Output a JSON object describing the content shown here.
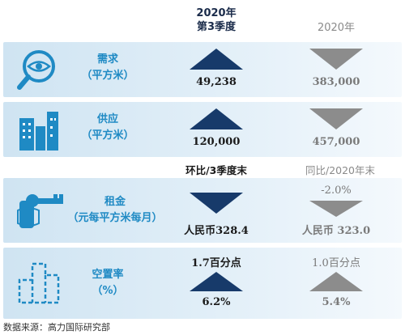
{
  "header": {
    "col1_line1": "2020年",
    "col1_line2": "第3季度",
    "col2": "2020年"
  },
  "rows": [
    {
      "icon": "magnifier-eye-icon",
      "label_line1": "需求",
      "label_line2": "（平方米）",
      "col1_value": "49,238",
      "col1_arrow": "up",
      "col2_value": "383,000",
      "col2_arrow": "down"
    },
    {
      "icon": "buildings-icon",
      "label_line1": "供应",
      "label_line2": "（平方米）",
      "col1_value": "120,000",
      "col1_arrow": "up",
      "col2_value": "457,000",
      "col2_arrow": "down"
    },
    {
      "icon": "key-hand-icon",
      "label_line1": "租金",
      "label_line2": "（元每平方米每月）",
      "col1_header": "环比/3季度末",
      "col2_header": "同比/2020年末",
      "col2_change": "-2.0%",
      "col1_value": "人民币328.4",
      "col1_arrow": "down",
      "col2_value": "人民币 323.0",
      "col2_arrow": "down"
    },
    {
      "icon": "vacant-building-icon",
      "label_line1": "空置率",
      "label_line2": "（%）",
      "col1_change": "1.7百分点",
      "col2_change": "1.0百分点",
      "col1_value": "6.2%",
      "col1_arrow": "up",
      "col2_value": "5.4%",
      "col2_arrow": "up"
    }
  ],
  "source": "数据来源：高力国际研究部",
  "colors": {
    "dark_arrow": "#173a6a",
    "gray_arrow": "#8c8c8c",
    "label_blue": "#1f8ac4",
    "icon_blue": "#1f8ac4"
  }
}
